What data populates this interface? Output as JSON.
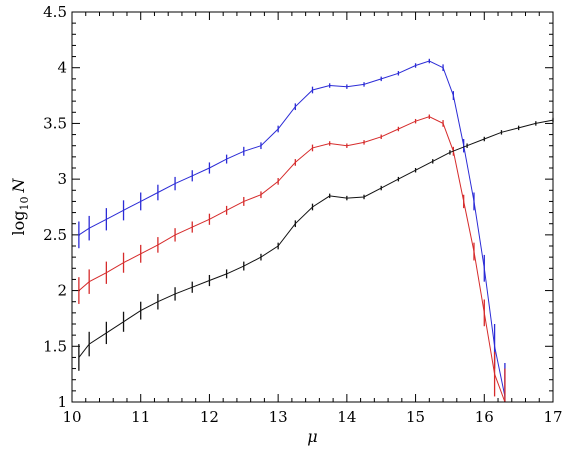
{
  "chart_data": {
    "type": "scatter",
    "title": "",
    "xlabel": "μ",
    "ylabel_prefix": "log",
    "ylabel_sub": "10",
    "ylabel_var": "N",
    "xlim": [
      10,
      17
    ],
    "ylim": [
      1,
      4.5
    ],
    "x_ticks": [
      10,
      11,
      12,
      13,
      14,
      15,
      16,
      17
    ],
    "x_tick_labels": [
      "10",
      "11",
      "12",
      "13",
      "14",
      "15",
      "16",
      "17"
    ],
    "y_ticks": [
      1,
      1.5,
      2,
      2.5,
      3,
      3.5,
      4,
      4.5
    ],
    "y_tick_labels": [
      "1",
      "1.5",
      "2",
      "2.5",
      "3",
      "3.5",
      "4",
      "4.5"
    ],
    "grid": false,
    "series": [
      {
        "color": "#2b2bd6",
        "x": [
          10.1,
          10.25,
          10.5,
          10.75,
          11.0,
          11.25,
          11.5,
          11.75,
          12.0,
          12.25,
          12.5,
          12.75,
          13.0,
          13.25,
          13.5,
          13.75,
          14.0,
          14.25,
          14.5,
          14.75,
          15.0,
          15.2,
          15.4,
          15.55,
          15.7,
          15.85,
          16.0,
          16.15,
          16.3
        ],
        "y": [
          2.5,
          2.56,
          2.64,
          2.72,
          2.8,
          2.88,
          2.96,
          3.03,
          3.1,
          3.18,
          3.25,
          3.3,
          3.45,
          3.65,
          3.8,
          3.84,
          3.83,
          3.85,
          3.9,
          3.95,
          4.02,
          4.06,
          4.0,
          3.75,
          3.3,
          2.8,
          2.2,
          1.5,
          1.05
        ],
        "err": [
          0.12,
          0.11,
          0.1,
          0.09,
          0.08,
          0.07,
          0.06,
          0.05,
          0.05,
          0.04,
          0.04,
          0.03,
          0.03,
          0.03,
          0.03,
          0.02,
          0.02,
          0.02,
          0.02,
          0.02,
          0.02,
          0.02,
          0.03,
          0.04,
          0.06,
          0.08,
          0.12,
          0.2,
          0.3
        ]
      },
      {
        "color": "#d62b2b",
        "x": [
          10.1,
          10.25,
          10.5,
          10.75,
          11.0,
          11.25,
          11.5,
          11.75,
          12.0,
          12.25,
          12.5,
          12.75,
          13.0,
          13.25,
          13.5,
          13.75,
          14.0,
          14.25,
          14.5,
          14.75,
          15.0,
          15.2,
          15.4,
          15.55,
          15.7,
          15.85,
          16.0,
          16.15,
          16.3
        ],
        "y": [
          2.0,
          2.08,
          2.16,
          2.25,
          2.33,
          2.41,
          2.5,
          2.57,
          2.64,
          2.72,
          2.8,
          2.86,
          2.98,
          3.15,
          3.28,
          3.32,
          3.3,
          3.33,
          3.38,
          3.45,
          3.52,
          3.56,
          3.5,
          3.25,
          2.8,
          2.35,
          1.8,
          1.25,
          1.0
        ],
        "err": [
          0.12,
          0.11,
          0.1,
          0.09,
          0.08,
          0.07,
          0.06,
          0.05,
          0.05,
          0.04,
          0.04,
          0.03,
          0.03,
          0.03,
          0.03,
          0.02,
          0.02,
          0.02,
          0.02,
          0.02,
          0.02,
          0.02,
          0.03,
          0.04,
          0.06,
          0.08,
          0.12,
          0.2,
          0.3
        ]
      },
      {
        "color": "#111111",
        "x": [
          10.1,
          10.25,
          10.5,
          10.75,
          11.0,
          11.25,
          11.5,
          11.75,
          12.0,
          12.25,
          12.5,
          12.75,
          13.0,
          13.25,
          13.5,
          13.75,
          14.0,
          14.25,
          14.5,
          14.75,
          15.0,
          15.25,
          15.5,
          15.75,
          16.0,
          16.25,
          16.5,
          16.75,
          17.0
        ],
        "y": [
          1.4,
          1.52,
          1.62,
          1.72,
          1.82,
          1.9,
          1.97,
          2.03,
          2.09,
          2.15,
          2.22,
          2.3,
          2.4,
          2.6,
          2.75,
          2.85,
          2.83,
          2.84,
          2.92,
          3.0,
          3.08,
          3.16,
          3.24,
          3.3,
          3.36,
          3.42,
          3.46,
          3.5,
          3.53
        ],
        "err": [
          0.12,
          0.11,
          0.1,
          0.09,
          0.08,
          0.07,
          0.06,
          0.05,
          0.05,
          0.04,
          0.04,
          0.03,
          0.03,
          0.03,
          0.03,
          0.02,
          0.02,
          0.02,
          0.02,
          0.02,
          0.02,
          0.02,
          0.02,
          0.02,
          0.02,
          0.02,
          0.02,
          0.02,
          0.02
        ]
      }
    ]
  }
}
